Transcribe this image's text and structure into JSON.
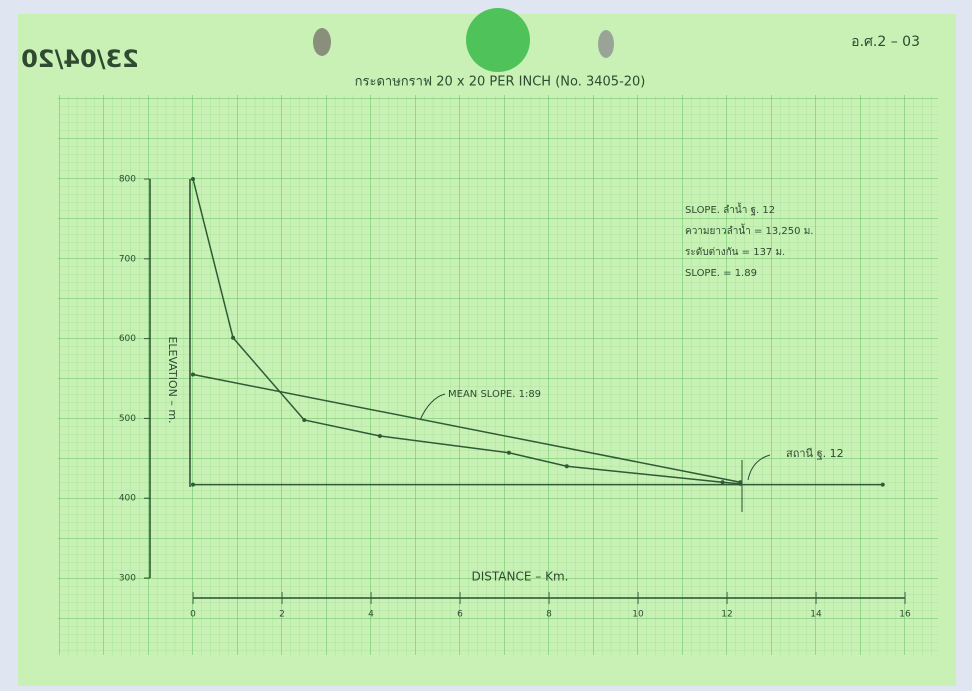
{
  "chart_data": {
    "type": "line",
    "paper_label": "กระดาษกราฟ 20 x 20 PER INCH (No. 3405-20)",
    "form_code": "อ.ศ.2 – 03",
    "date_stamp": "23/04/20",
    "ylabel": "ELEVATION – m.",
    "xlabel": "DISTANCE – Km.",
    "xlim": [
      0,
      16
    ],
    "ylim": [
      300,
      800
    ],
    "xticks": [
      0,
      2,
      4,
      6,
      8,
      10,
      12,
      14,
      16
    ],
    "yticks": [
      300,
      400,
      500,
      600,
      700,
      800
    ],
    "color": "#2f5a35",
    "series": [
      {
        "name": "profile",
        "x": [
          0,
          0.9,
          2.5,
          4.2,
          7.1,
          8.4,
          11.9,
          12.3
        ],
        "values": [
          800,
          601,
          498,
          478,
          457,
          440,
          420,
          418
        ]
      },
      {
        "name": "mean slope",
        "x": [
          0,
          12.3
        ],
        "values": [
          555,
          420
        ]
      },
      {
        "name": "datum",
        "x": [
          0,
          15.5
        ],
        "values": [
          417,
          417
        ]
      }
    ],
    "annotations": {
      "mean_slope": "MEAN SLOPE. 1:89",
      "station": "สถานี ฐ. 12",
      "info": [
        "SLOPE. ลำน้ำ ฐ. 12",
        "ความยาวลำน้ำ  =  13,250  ม.",
        "ระดับต่างกัน  =  137  ม.",
        "SLOPE.  =  1.89"
      ]
    }
  }
}
